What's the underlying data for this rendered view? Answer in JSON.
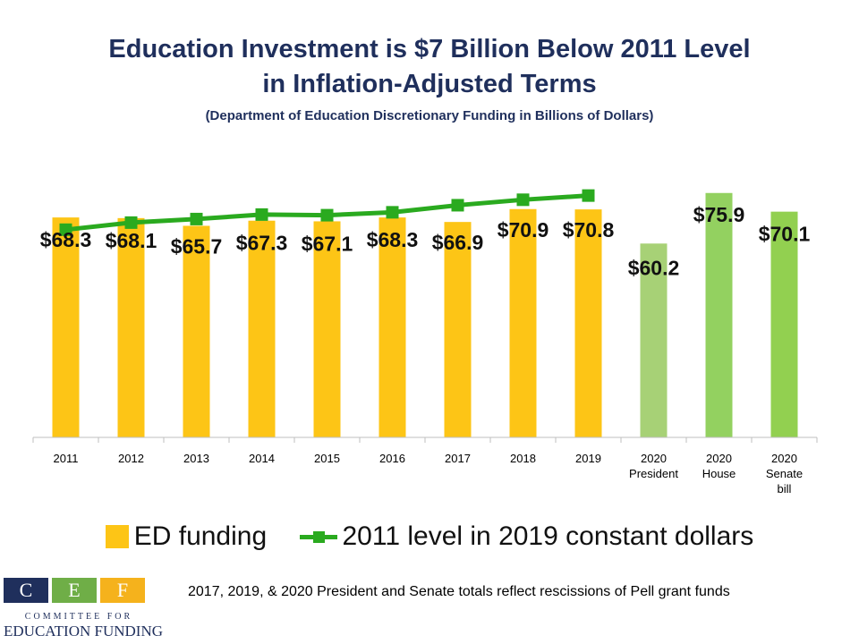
{
  "header": {
    "title_line1": "Education Investment is $7 Billion Below 2011 Level",
    "title_line2": "in Inflation-Adjusted Terms",
    "subtitle": "(Department of Education Discretionary Funding in Billions of Dollars)"
  },
  "chart_data": {
    "type": "bar",
    "categories": [
      "2011",
      "2012",
      "2013",
      "2014",
      "2015",
      "2016",
      "2017",
      "2018",
      "2019",
      "2020\nPresident",
      "2020\nHouse",
      "2020\nSenate\nbill"
    ],
    "series": [
      {
        "name": "ED funding",
        "type": "bar",
        "values": [
          68.3,
          68.1,
          65.7,
          67.3,
          67.1,
          68.3,
          66.9,
          70.9,
          70.8,
          60.2,
          75.9,
          70.1
        ],
        "labels": [
          "$68.3",
          "$68.1",
          "$65.7",
          "$67.3",
          "$67.1",
          "$68.3",
          "$66.9",
          "$70.9",
          "$70.8",
          "$60.2",
          "$75.9",
          "$70.1"
        ]
      },
      {
        "name": "2011 level in 2019 constant dollars",
        "type": "line",
        "values": [
          64.5,
          66.7,
          67.8,
          69.2,
          69.0,
          69.9,
          72.1,
          73.8,
          75.1,
          null,
          null,
          null
        ]
      }
    ],
    "ylim": [
      0,
      90
    ],
    "grid": false,
    "legend": "bottom",
    "colors": {
      "bar_main": "#fdc516",
      "bar_2020_president": "#a7d176",
      "bar_2020_house": "#93d160",
      "bar_2020_senate": "#92d050",
      "line": "#2aaa1f"
    }
  },
  "legend": {
    "bar_label": "ED funding",
    "line_label": "2011 level in 2019 constant dollars"
  },
  "footnote": "2017, 2019, & 2020 President and Senate totals reflect rescissions of Pell grant funds",
  "logo": {
    "letters": [
      "C",
      "E",
      "F"
    ],
    "line1": "COMMITTEE FOR",
    "line2": "EDUCATION FUNDING",
    "colors": [
      "#1f2f5c",
      "#6fae47",
      "#f5b21c"
    ]
  }
}
